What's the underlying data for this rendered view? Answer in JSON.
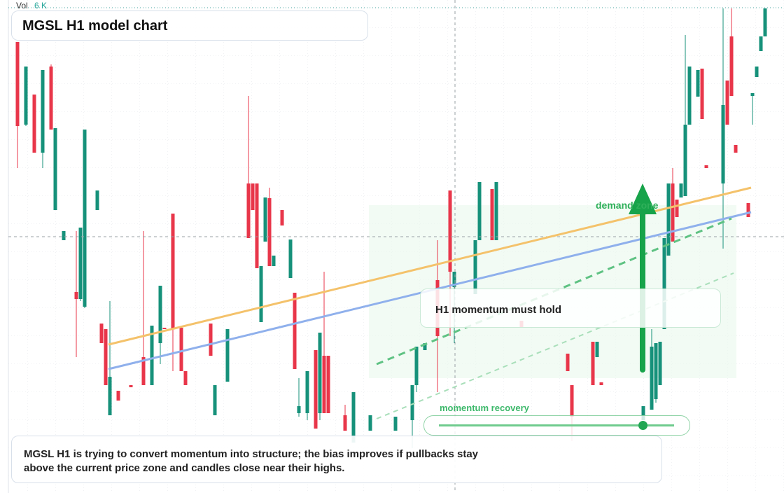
{
  "chart_data": {
    "type": "candlestick",
    "title": "MGSL H1 model chart",
    "volume": {
      "label": "Vol",
      "value": "6 K"
    },
    "annotations": {
      "zone": "demand zone",
      "callout": "H1 momentum must hold",
      "recovery": "momentum recovery",
      "note": "MGSL H1 is trying to convert momentum into structure; the bias improves if pullbacks stay above the current price zone and candles close near their highs."
    },
    "up_color": "#16917a",
    "down_color": "#e8364a",
    "xlim": [
      0,
      181
    ],
    "ylim": [
      0,
      704
    ],
    "x": [
      2,
      4,
      6,
      8,
      10,
      11,
      13,
      16,
      17,
      18,
      21,
      22,
      23,
      24,
      26,
      29,
      32,
      34,
      36,
      37,
      39,
      41,
      42,
      48,
      49,
      52,
      57,
      58,
      59,
      60,
      61,
      62,
      63,
      65,
      67,
      68,
      69,
      71,
      73,
      74,
      75,
      76,
      80,
      82,
      86,
      92,
      96,
      97,
      99,
      102,
      105,
      106,
      111,
      112,
      115,
      116,
      122,
      133,
      134,
      139,
      140,
      141,
      151,
      153,
      154,
      155,
      156,
      157,
      158,
      159,
      160,
      161,
      162,
      164,
      165,
      166,
      170,
      171,
      172,
      173,
      176,
      177,
      178,
      179,
      180
    ],
    "open": [
      644,
      526,
      569,
      486,
      609,
      404,
      361,
      287,
      277,
      266,
      404,
      242,
      234,
      111,
      146,
      154,
      194,
      154,
      214,
      236,
      399,
      236,
      174,
      242,
      111,
      159,
      442,
      442,
      442,
      244,
      359,
      421,
      324,
      404,
      307,
      286,
      114,
      114,
      204,
      114,
      196,
      196,
      111,
      72,
      89,
      89,
      104,
      154,
      204,
      304,
      432,
      294,
      284,
      361,
      434,
      361,
      246,
      199,
      154,
      216,
      194,
      158,
      104,
      119,
      134,
      154,
      234,
      339,
      442,
      419,
      422,
      424,
      526,
      566,
      606,
      468,
      442,
      589,
      652,
      497,
      414,
      567,
      594,
      631,
      652
    ],
    "high": [
      644,
      609,
      569,
      604,
      612,
      521,
      374,
      374,
      379,
      519,
      432,
      242,
      234,
      274,
      146,
      154,
      374,
      239,
      296,
      236,
      399,
      236,
      174,
      242,
      154,
      234,
      567,
      442,
      442,
      324,
      422,
      436,
      339,
      404,
      362,
      286,
      164,
      174,
      204,
      229,
      316,
      196,
      126,
      144,
      111,
      109,
      154,
      209,
      214,
      361,
      432,
      316,
      361,
      444,
      434,
      444,
      246,
      199,
      154,
      216,
      216,
      158,
      124,
      234,
      214,
      216,
      364,
      442,
      464,
      419,
      442,
      654,
      609,
      604,
      606,
      468,
      692,
      589,
      692,
      497,
      414,
      571,
      609,
      652,
      692
    ],
    "low": [
      464,
      524,
      486,
      464,
      519,
      404,
      361,
      194,
      274,
      264,
      404,
      214,
      154,
      111,
      132,
      151,
      154,
      154,
      184,
      234,
      174,
      174,
      154,
      196,
      111,
      159,
      364,
      404,
      321,
      244,
      359,
      324,
      324,
      382,
      307,
      177,
      109,
      104,
      92,
      104,
      114,
      114,
      89,
      72,
      89,
      89,
      64,
      144,
      204,
      144,
      224,
      214,
      284,
      361,
      361,
      361,
      237,
      174,
      74,
      154,
      194,
      154,
      104,
      119,
      129,
      154,
      234,
      339,
      359,
      394,
      422,
      424,
      526,
      566,
      534,
      464,
      349,
      526,
      567,
      486,
      394,
      526,
      594,
      631,
      652
    ],
    "close": [
      524,
      609,
      486,
      604,
      519,
      521,
      374,
      277,
      379,
      519,
      432,
      214,
      154,
      166,
      132,
      151,
      154,
      239,
      296,
      234,
      234,
      174,
      154,
      196,
      154,
      234,
      364,
      404,
      321,
      324,
      422,
      324,
      339,
      382,
      362,
      177,
      124,
      174,
      92,
      229,
      114,
      114,
      89,
      144,
      111,
      109,
      154,
      209,
      214,
      224,
      316,
      316,
      361,
      444,
      361,
      444,
      237,
      174,
      109,
      154,
      216,
      154,
      124,
      209,
      214,
      216,
      364,
      442,
      359,
      394,
      442,
      526,
      609,
      604,
      534,
      464,
      554,
      526,
      567,
      486,
      394,
      571,
      609,
      652,
      692
    ]
  }
}
